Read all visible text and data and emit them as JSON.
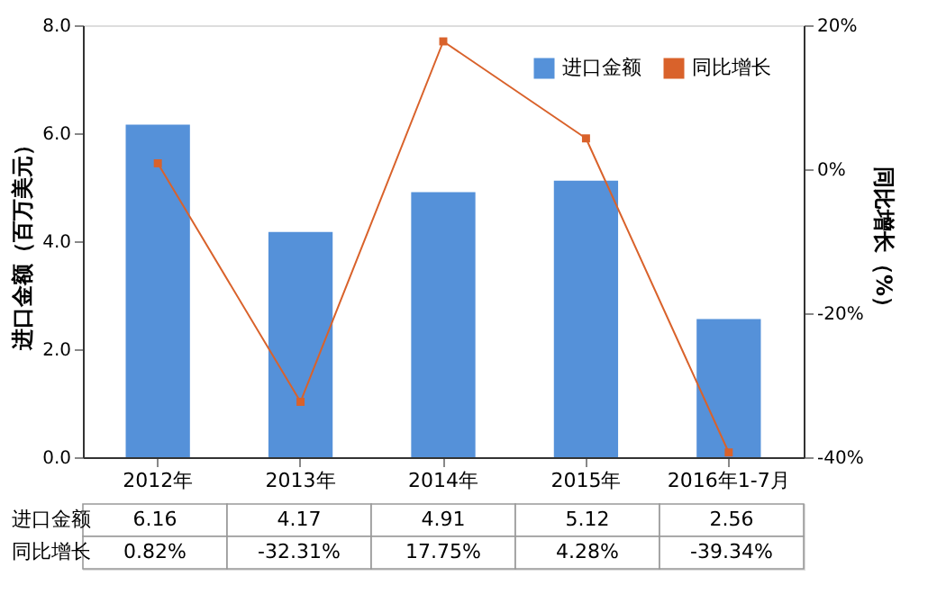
{
  "chart_data": {
    "type": "bar",
    "categories": [
      "2012年",
      "2013年",
      "2014年",
      "2015年",
      "2016年1-7月"
    ],
    "series": [
      {
        "name": "进口金额",
        "color": "#5591d9",
        "values": [
          6.16,
          4.17,
          4.91,
          5.12,
          2.56
        ],
        "value_labels": [
          "6.16",
          "4.17",
          "4.91",
          "5.12",
          "2.56"
        ]
      },
      {
        "name": "同比增长",
        "type": "line",
        "axis": "y2",
        "marker": "square",
        "color": "#d9622b",
        "values": [
          0.82,
          -32.31,
          17.75,
          4.28,
          -39.34
        ],
        "value_labels": [
          "0.82%",
          "-32.31%",
          "17.75%",
          "4.28%",
          "-39.34%"
        ]
      }
    ],
    "ylabel": "进口金额（百万美元）",
    "y2label": "同比增长（%）",
    "ylim": [
      0,
      8
    ],
    "yticks": [
      {
        "value": 0,
        "label": "0.0"
      },
      {
        "value": 2,
        "label": "2.0"
      },
      {
        "value": 4,
        "label": "4.0"
      },
      {
        "value": 6,
        "label": "6.0"
      },
      {
        "value": 8,
        "label": "8.0"
      }
    ],
    "y2lim": [
      -40,
      20
    ],
    "y2ticks": [
      {
        "value": -40,
        "label": "-40%"
      },
      {
        "value": -20,
        "label": "-20%"
      },
      {
        "value": 0,
        "label": "0%"
      },
      {
        "value": 20,
        "label": "20%"
      }
    ],
    "legend": "top right",
    "grid": false
  }
}
